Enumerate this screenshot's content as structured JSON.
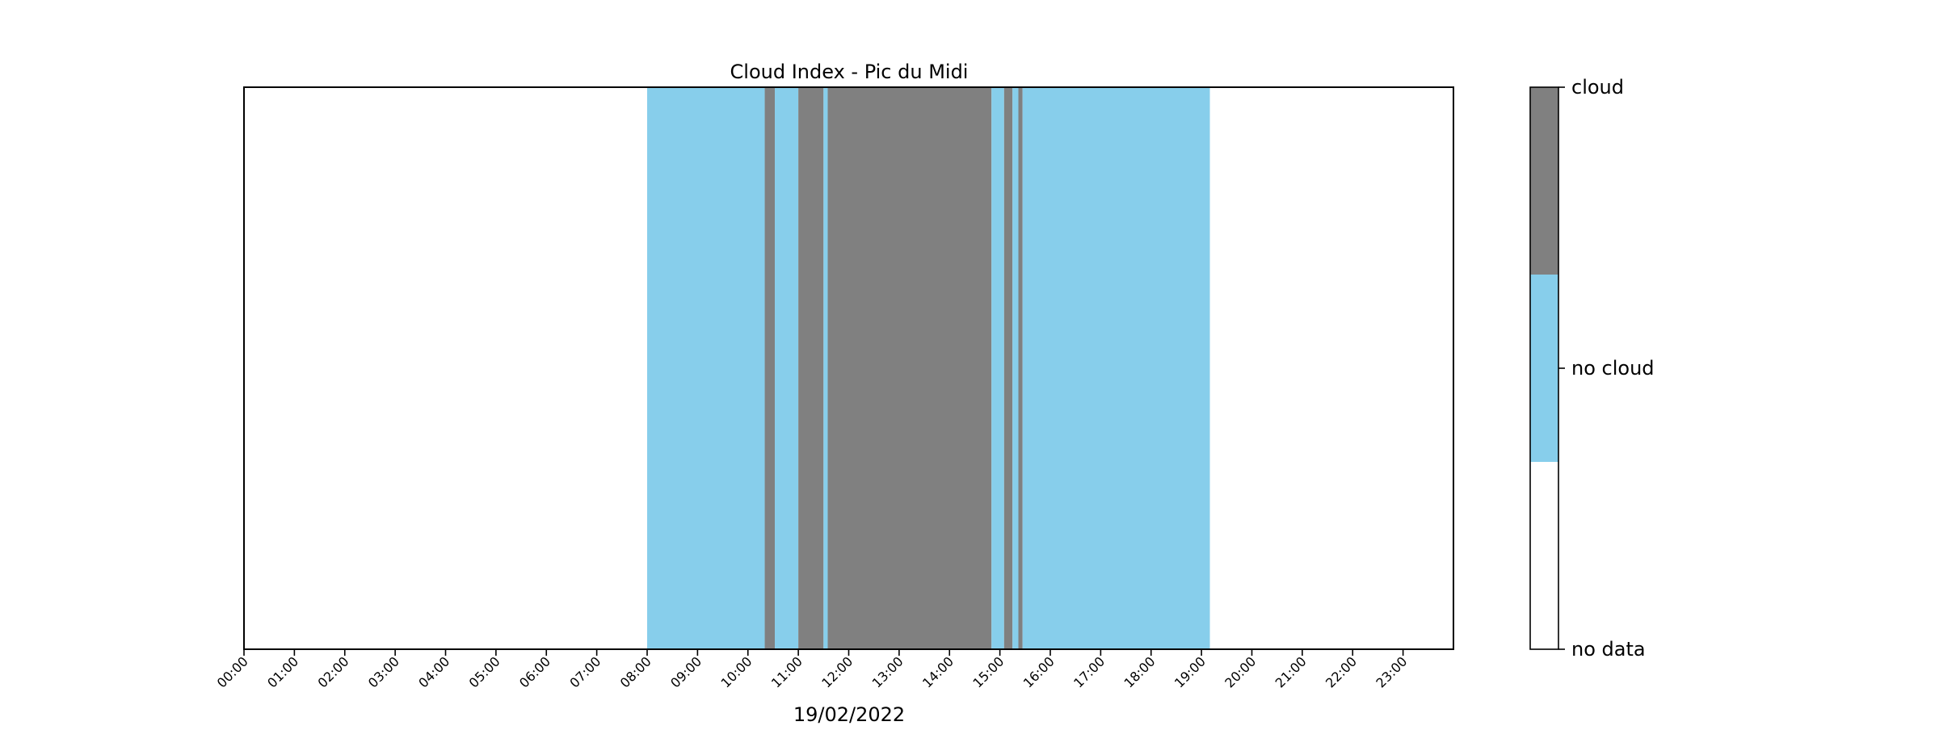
{
  "chart_data": {
    "type": "heatmap",
    "title": "Cloud Index - Pic du Midi",
    "xlabel": "19/02/2022",
    "ylabel": "",
    "x_unit": "hour of day",
    "xlim": [
      0,
      24
    ],
    "x_ticks": [
      "00:00",
      "01:00",
      "02:00",
      "03:00",
      "04:00",
      "05:00",
      "06:00",
      "07:00",
      "08:00",
      "09:00",
      "10:00",
      "11:00",
      "12:00",
      "13:00",
      "14:00",
      "15:00",
      "16:00",
      "17:00",
      "18:00",
      "19:00",
      "20:00",
      "21:00",
      "22:00",
      "23:00"
    ],
    "grid": false,
    "categories": [
      {
        "label": "no data",
        "value": 0,
        "color": "#ffffff"
      },
      {
        "label": "no cloud",
        "value": 1,
        "color": "#87ceeb"
      },
      {
        "label": "cloud",
        "value": 2,
        "color": "#808080"
      }
    ],
    "segments": [
      {
        "start": "08:00",
        "end": "10:20",
        "state": "no cloud"
      },
      {
        "start": "10:20",
        "end": "10:32",
        "state": "cloud"
      },
      {
        "start": "10:32",
        "end": "11:00",
        "state": "no cloud"
      },
      {
        "start": "11:00",
        "end": "11:30",
        "state": "cloud"
      },
      {
        "start": "11:30",
        "end": "11:35",
        "state": "no cloud"
      },
      {
        "start": "11:35",
        "end": "14:50",
        "state": "cloud"
      },
      {
        "start": "14:50",
        "end": "15:05",
        "state": "no cloud"
      },
      {
        "start": "15:05",
        "end": "15:15",
        "state": "cloud"
      },
      {
        "start": "15:15",
        "end": "15:22",
        "state": "no cloud"
      },
      {
        "start": "15:22",
        "end": "15:27",
        "state": "cloud"
      },
      {
        "start": "15:27",
        "end": "19:10",
        "state": "no cloud"
      }
    ],
    "colorbar": {
      "labels": [
        "no data",
        "no cloud",
        "cloud"
      ],
      "colors": [
        "#ffffff",
        "#87ceeb",
        "#808080"
      ]
    }
  }
}
